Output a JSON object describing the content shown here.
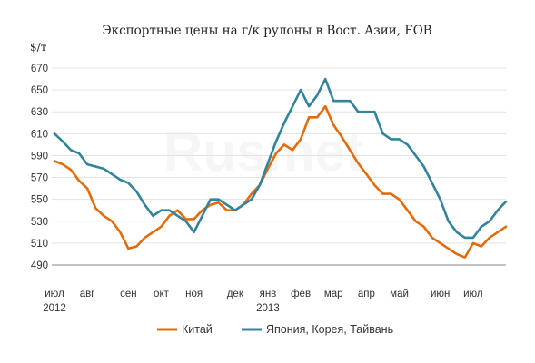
{
  "chart_data": {
    "type": "line",
    "title": "Экспортные цены на г/к рулоны в Вост. Азии,   FOB",
    "ylabel": "$/т",
    "ylim": [
      490,
      670
    ],
    "yticks": [
      490,
      510,
      530,
      550,
      570,
      590,
      610,
      630,
      650,
      670
    ],
    "grid": true,
    "legend_position": "bottom",
    "watermark": "Rusmet",
    "month_labels": [
      {
        "label": "июл",
        "year": "2012",
        "x": 0
      },
      {
        "label": "авг",
        "x": 4
      },
      {
        "label": "сен",
        "x": 9
      },
      {
        "label": "окт",
        "x": 13
      },
      {
        "label": "ноя",
        "x": 17
      },
      {
        "label": "дек",
        "x": 22
      },
      {
        "label": "янв",
        "year": "2013",
        "x": 26
      },
      {
        "label": "фев",
        "x": 30
      },
      {
        "label": "мар",
        "x": 34
      },
      {
        "label": "апр",
        "x": 38
      },
      {
        "label": "май",
        "x": 42
      },
      {
        "label": "июн",
        "x": 47
      },
      {
        "label": "июл",
        "x": 51
      }
    ],
    "series": [
      {
        "name": "Китай",
        "color": "#e36c0a",
        "values": [
          585,
          582,
          577,
          567,
          560,
          542,
          535,
          530,
          520,
          505,
          507,
          515,
          520,
          525,
          535,
          540,
          532,
          532,
          540,
          545,
          547,
          540,
          540,
          545,
          555,
          563,
          578,
          592,
          600,
          595,
          605,
          625,
          625,
          635,
          618,
          607,
          595,
          583,
          573,
          563,
          555,
          555,
          550,
          540,
          530,
          525,
          515,
          510,
          505,
          500,
          497,
          510,
          507,
          515,
          520,
          525
        ]
      },
      {
        "name": "Япония, Корея, Тайвань",
        "color": "#31849b",
        "values": [
          610,
          603,
          595,
          592,
          582,
          580,
          578,
          573,
          568,
          565,
          557,
          545,
          535,
          540,
          540,
          535,
          530,
          520,
          535,
          550,
          550,
          545,
          540,
          545,
          550,
          563,
          583,
          603,
          620,
          635,
          650,
          635,
          645,
          660,
          640,
          640,
          640,
          630,
          630,
          630,
          610,
          605,
          605,
          600,
          590,
          580,
          565,
          550,
          530,
          520,
          515,
          515,
          525,
          530,
          540,
          548
        ]
      }
    ]
  }
}
